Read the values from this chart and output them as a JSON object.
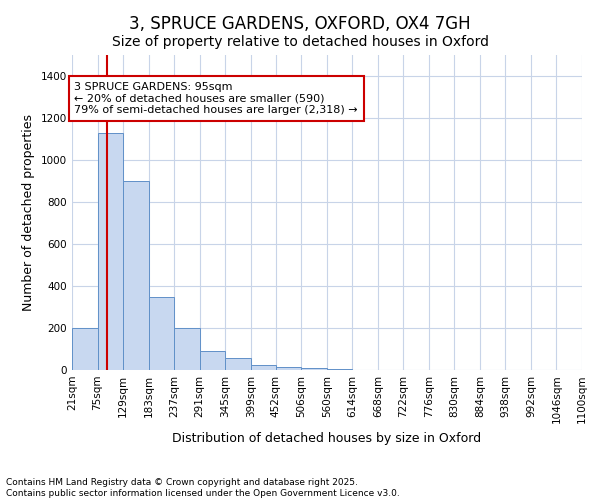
{
  "title": "3, SPRUCE GARDENS, OXFORD, OX4 7GH",
  "subtitle": "Size of property relative to detached houses in Oxford",
  "xlabel": "Distribution of detached houses by size in Oxford",
  "ylabel": "Number of detached properties",
  "bin_edges": [
    21,
    75,
    129,
    183,
    237,
    291,
    345,
    399,
    452,
    506,
    560,
    614,
    668,
    722,
    776,
    830,
    884,
    938,
    992,
    1046,
    1100
  ],
  "bar_heights": [
    200,
    1130,
    900,
    350,
    200,
    90,
    55,
    25,
    15,
    10,
    5,
    1,
    0,
    0,
    0,
    0,
    0,
    0,
    0,
    0
  ],
  "bar_color": "#c8d8f0",
  "bar_edge_color": "#6090c8",
  "property_size": 95,
  "red_line_color": "#cc0000",
  "annotation_text": "3 SPRUCE GARDENS: 95sqm\n← 20% of detached houses are smaller (590)\n79% of semi-detached houses are larger (2,318) →",
  "annotation_box_color": "#ffffff",
  "annotation_box_edge_color": "#cc0000",
  "ylim": [
    0,
    1500
  ],
  "yticks": [
    0,
    200,
    400,
    600,
    800,
    1000,
    1200,
    1400
  ],
  "background_color": "#ffffff",
  "plot_background_color": "#ffffff",
  "grid_color": "#c8d4e8",
  "footer_line1": "Contains HM Land Registry data © Crown copyright and database right 2025.",
  "footer_line2": "Contains public sector information licensed under the Open Government Licence v3.0.",
  "title_fontsize": 12,
  "subtitle_fontsize": 10,
  "tick_fontsize": 7.5,
  "ylabel_fontsize": 9,
  "xlabel_fontsize": 9,
  "annotation_fontsize": 8,
  "footer_fontsize": 6.5
}
